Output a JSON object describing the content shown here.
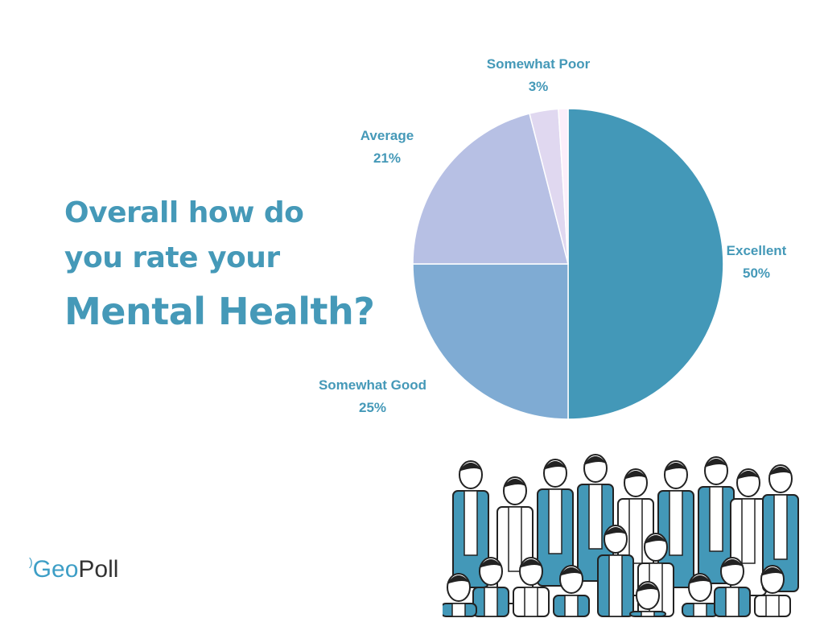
{
  "chart_data": {
    "type": "pie",
    "title_lines": [
      "Overall how do",
      "you rate your",
      "Mental Health?"
    ],
    "slices": [
      {
        "name": "Excellent",
        "value": 50,
        "label": "50%",
        "color": "#4398b8"
      },
      {
        "name": "Somewhat Good",
        "value": 25,
        "label": "25%",
        "color": "#7fabd3"
      },
      {
        "name": "Average",
        "value": 21,
        "label": "21%",
        "color": "#b7c0e4"
      },
      {
        "name": "Somewhat Poor",
        "value": 3,
        "label": "3%",
        "color": "#e0d8f0"
      },
      {
        "name": "",
        "value": 1,
        "label": "",
        "color": "#fbeefa"
      }
    ],
    "start": "top",
    "direction": "clockwise"
  },
  "logo": {
    "part1": "Geo",
    "part2": "Poll"
  }
}
